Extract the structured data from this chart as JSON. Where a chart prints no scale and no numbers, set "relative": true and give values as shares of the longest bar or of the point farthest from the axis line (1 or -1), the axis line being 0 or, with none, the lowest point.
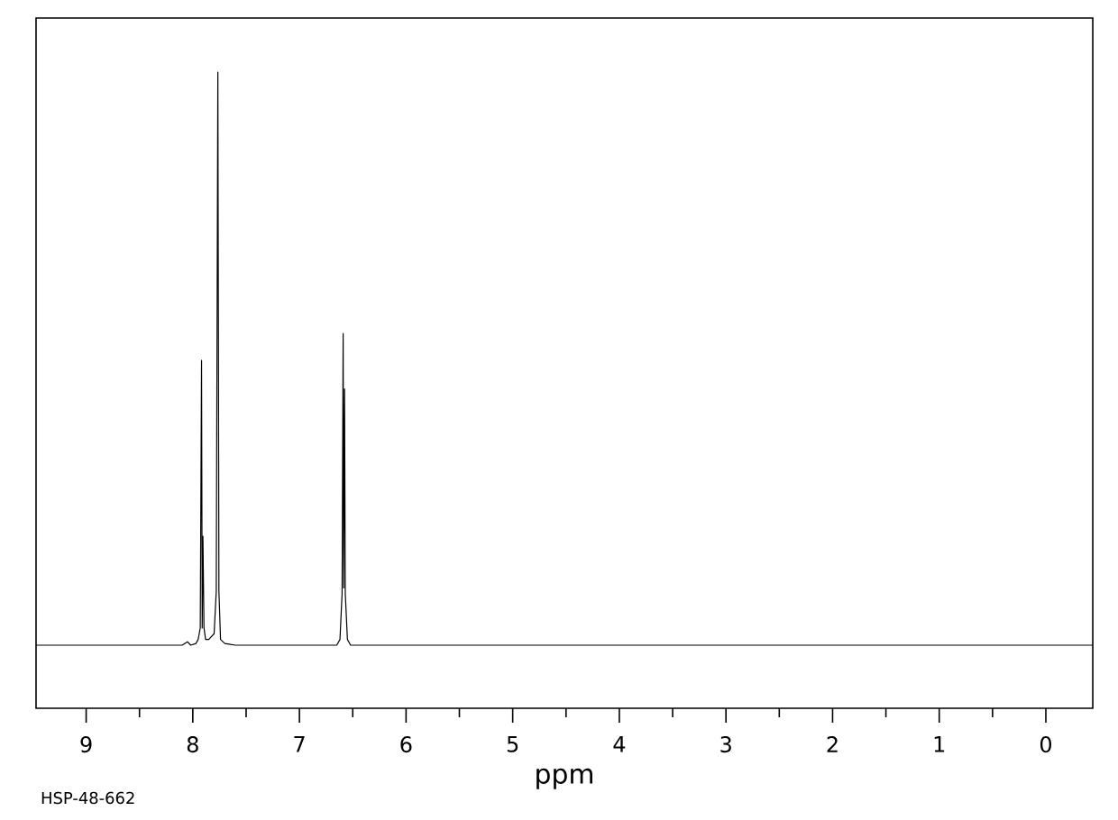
{
  "chart_data": {
    "type": "line",
    "relative": true,
    "xlabel": "ppm",
    "annotations": [
      "HSP-48-662"
    ],
    "xlim": [
      9.47,
      -0.44
    ],
    "xticks": [
      9,
      8,
      7,
      6,
      5,
      4,
      3,
      2,
      1,
      0
    ],
    "tick_labels": "x",
    "grid": false,
    "marker": "none",
    "line_style": "solid",
    "series": [
      {
        "color": "#000000",
        "x": [
          9.47,
          8.1,
          8.05,
          8.02,
          7.97,
          7.95,
          7.93,
          7.918,
          7.912,
          7.905,
          7.895,
          7.88,
          7.85,
          7.8,
          7.78,
          7.765,
          7.755,
          7.74,
          7.7,
          7.6,
          6.65,
          6.62,
          6.6,
          6.59,
          6.585,
          6.577,
          6.57,
          6.55,
          6.52,
          -0.44
        ],
        "values": [
          0,
          0,
          0.006,
          0,
          0.003,
          0.01,
          0.03,
          0.497,
          0.03,
          0.19,
          0.03,
          0.01,
          0.01,
          0.02,
          0.094,
          1.0,
          0.094,
          0.01,
          0.003,
          0,
          0,
          0.01,
          0.09,
          0.544,
          0.1,
          0.447,
          0.09,
          0.01,
          0,
          0
        ]
      }
    ]
  }
}
